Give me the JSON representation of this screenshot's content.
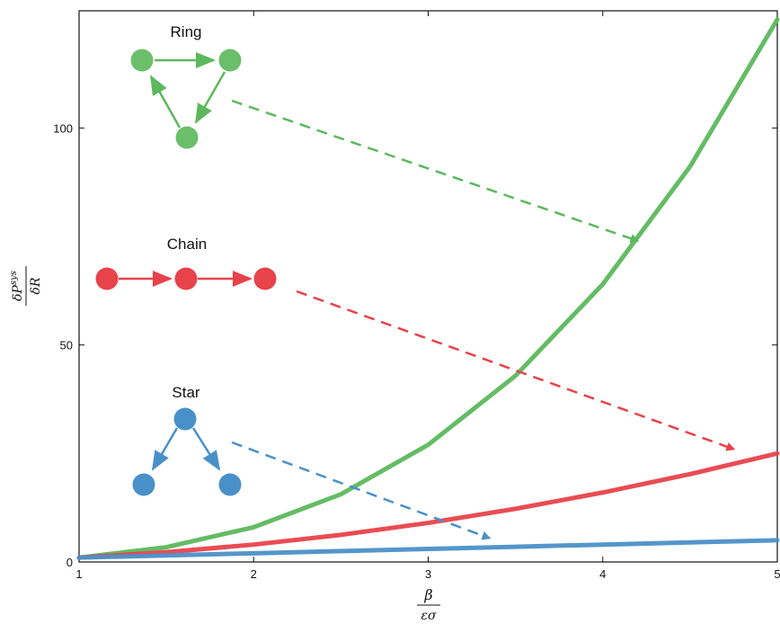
{
  "chart_data": {
    "type": "line",
    "xlim": [
      1,
      5
    ],
    "ylim": [
      0,
      127
    ],
    "x_ticks": [
      1,
      2,
      3,
      4,
      5
    ],
    "y_ticks": [
      0,
      50,
      100
    ],
    "grid": false,
    "legend": "none",
    "xlabel": {
      "numerator": "β",
      "denominator": "εσ"
    },
    "ylabel": {
      "numerator": "δP",
      "superscript": "sys",
      "denominator": "δR"
    },
    "series": [
      {
        "name": "Ring",
        "color": "#5cb85c",
        "x": [
          1,
          1.5,
          2,
          2.5,
          3,
          3.5,
          4,
          4.5,
          5
        ],
        "y": [
          1,
          3.4,
          8,
          15.6,
          27,
          42.9,
          64,
          91.1,
          125
        ]
      },
      {
        "name": "Chain",
        "color": "#e8424a",
        "x": [
          1,
          1.5,
          2,
          2.5,
          3,
          3.5,
          4,
          4.5,
          5
        ],
        "y": [
          1,
          2.25,
          4,
          6.25,
          9,
          12.25,
          16,
          20.25,
          25
        ]
      },
      {
        "name": "Star",
        "color": "#4a90c8",
        "x": [
          1,
          1.5,
          2,
          2.5,
          3,
          3.5,
          4,
          4.5,
          5
        ],
        "y": [
          1,
          1.5,
          2,
          2.5,
          3,
          3.5,
          4,
          4.5,
          5
        ]
      }
    ],
    "annotations": [
      {
        "label": "Ring",
        "graph": "ring",
        "color": "#5cb85c",
        "arrow_to": [
          4.2,
          74
        ]
      },
      {
        "label": "Chain",
        "graph": "chain",
        "color": "#e8424a",
        "arrow_to": [
          4.75,
          26
        ]
      },
      {
        "label": "Star",
        "graph": "star",
        "color": "#4a90c8",
        "arrow_to": [
          3.35,
          5.5
        ]
      }
    ]
  }
}
